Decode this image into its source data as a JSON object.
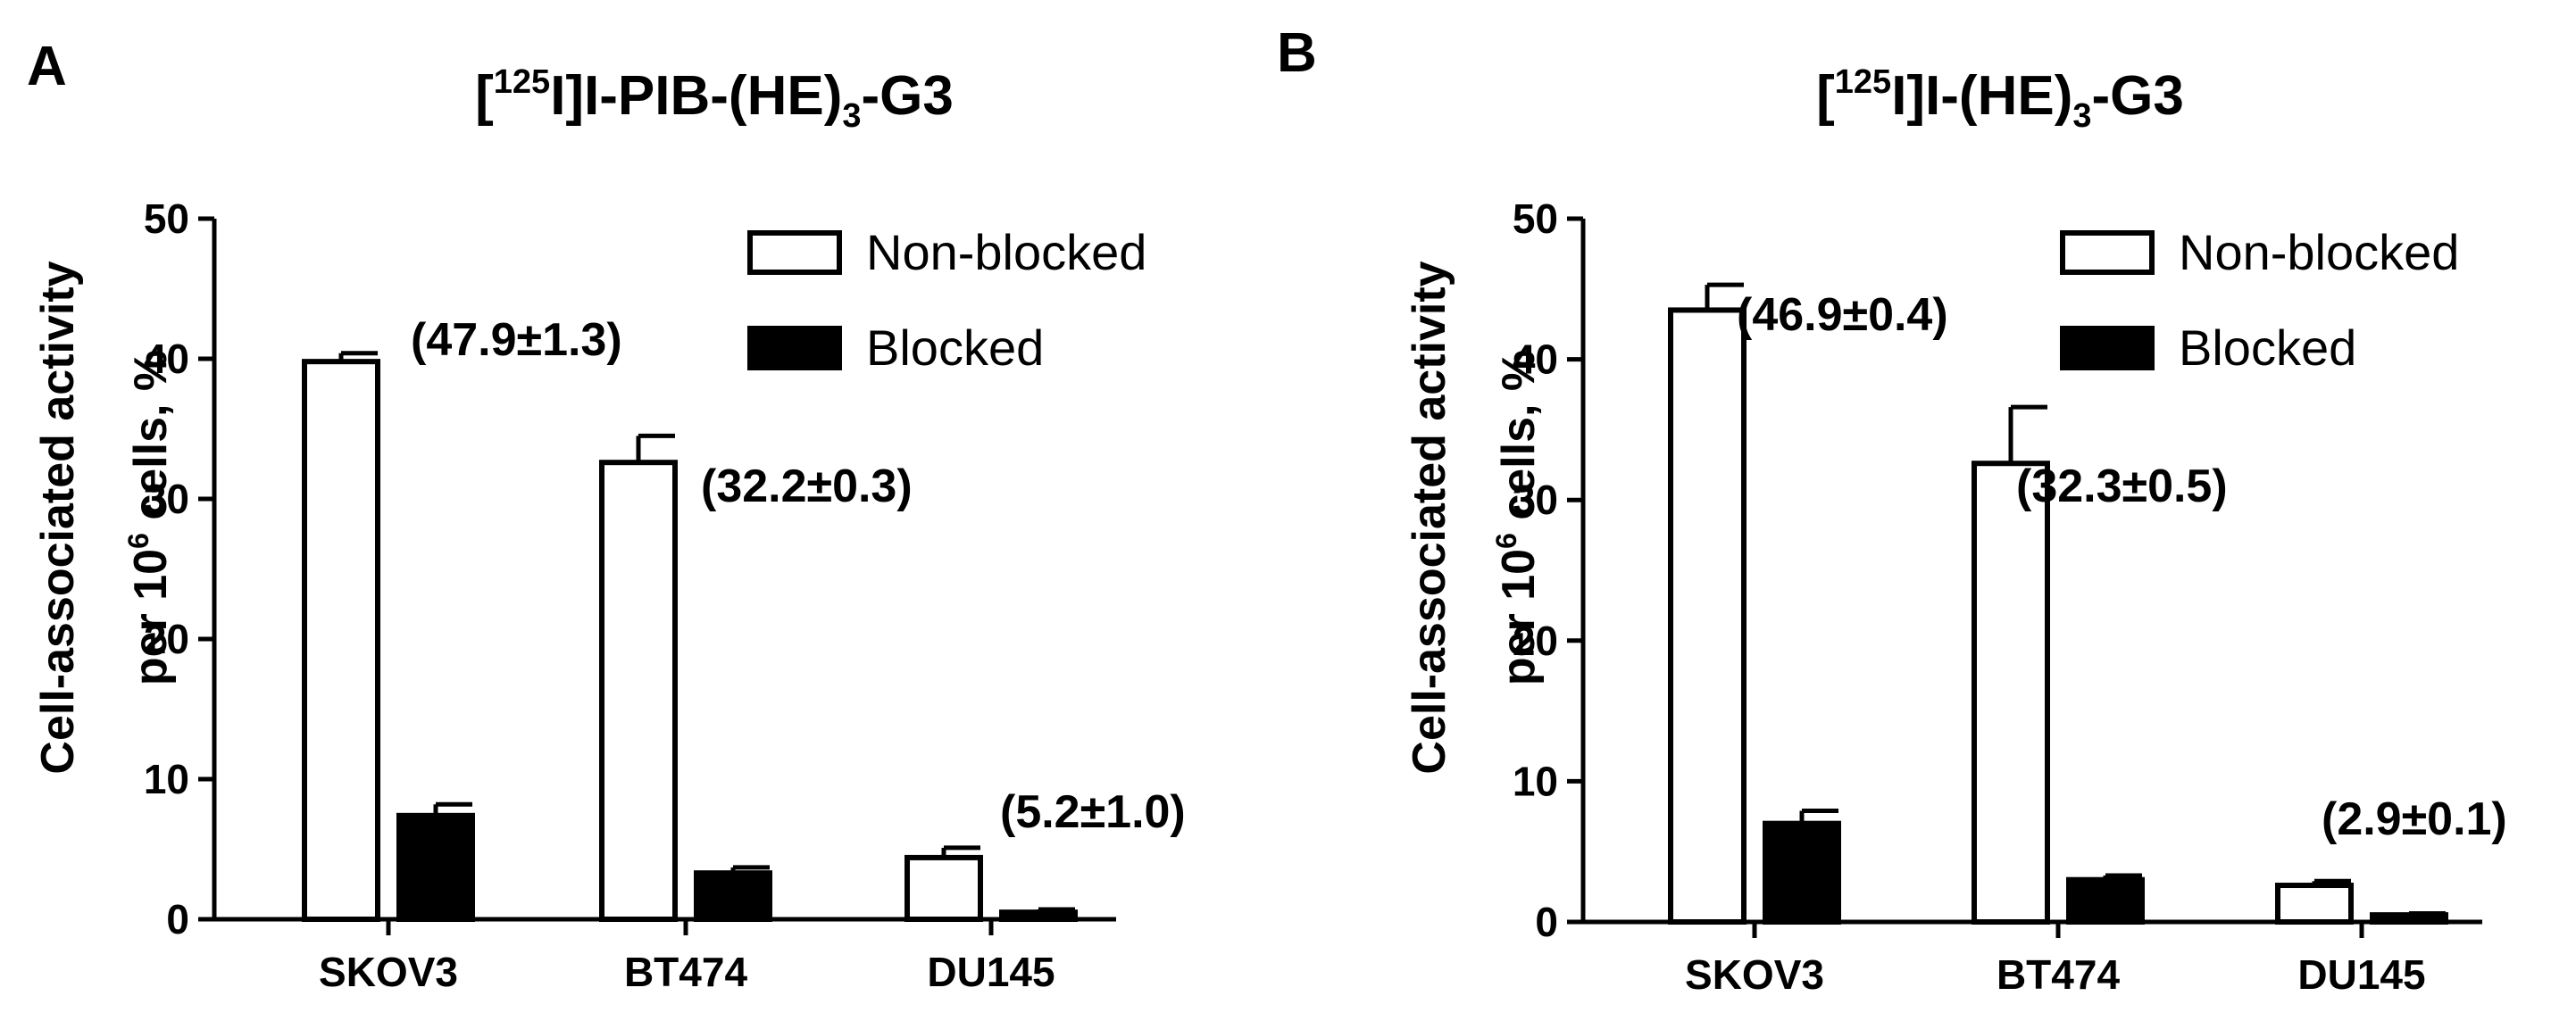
{
  "chart_data": [
    {
      "type": "bar",
      "panel_label": "A",
      "title": {
        "prefix": "[",
        "superscript": "125",
        "middle": "I]I-PIB-(HE)",
        "subscript": "3",
        "suffix": "-G3"
      },
      "ylabel_line1": "Cell-associated activity",
      "ylabel_line2": {
        "prefix": "per 10",
        "superscript": "6",
        "suffix": " cells, %"
      },
      "xlabel": "",
      "ylim": [
        0,
        50
      ],
      "yticks": [
        "0",
        "10",
        "20",
        "30",
        "40",
        "50"
      ],
      "categories": [
        "SKOV3",
        "BT474",
        "DU145"
      ],
      "series": [
        {
          "name": "Non-blocked",
          "fill": "#ffffff",
          "values": [
            39.8,
            32.6,
            4.4
          ],
          "errors": [
            0.6,
            1.9,
            0.7
          ]
        },
        {
          "name": "Blocked",
          "fill": "#000000",
          "values": [
            7.4,
            3.3,
            0.5
          ],
          "errors": [
            0.8,
            0.4,
            0.2
          ]
        }
      ],
      "annotations": [
        "(47.9±1.3)",
        "(32.2±0.3)",
        "(5.2±1.0)"
      ],
      "legend_position": "top-right",
      "grid": false
    },
    {
      "type": "bar",
      "panel_label": "B",
      "title": {
        "prefix": "[",
        "superscript": "125",
        "middle": "I]I-(HE)",
        "subscript": "3",
        "suffix": "-G3"
      },
      "ylabel_line1": "Cell-associated activity",
      "ylabel_line2": {
        "prefix": "per 10",
        "superscript": "6",
        "suffix": " cells, %"
      },
      "xlabel": "",
      "ylim": [
        0,
        50
      ],
      "yticks": [
        "0",
        "10",
        "20",
        "30",
        "40",
        "50"
      ],
      "categories": [
        "SKOV3",
        "BT474",
        "DU145"
      ],
      "series": [
        {
          "name": "Non-blocked",
          "fill": "#ffffff",
          "values": [
            43.5,
            32.6,
            2.6
          ],
          "errors": [
            1.8,
            4.0,
            0.3
          ]
        },
        {
          "name": "Blocked",
          "fill": "#000000",
          "values": [
            7.0,
            3.0,
            0.5
          ],
          "errors": [
            0.9,
            0.3,
            0.1
          ]
        }
      ],
      "annotations": [
        "(46.9±0.4)",
        "(32.3±0.5)",
        "(2.9±0.1)"
      ],
      "legend_position": "top-right",
      "grid": false
    }
  ]
}
